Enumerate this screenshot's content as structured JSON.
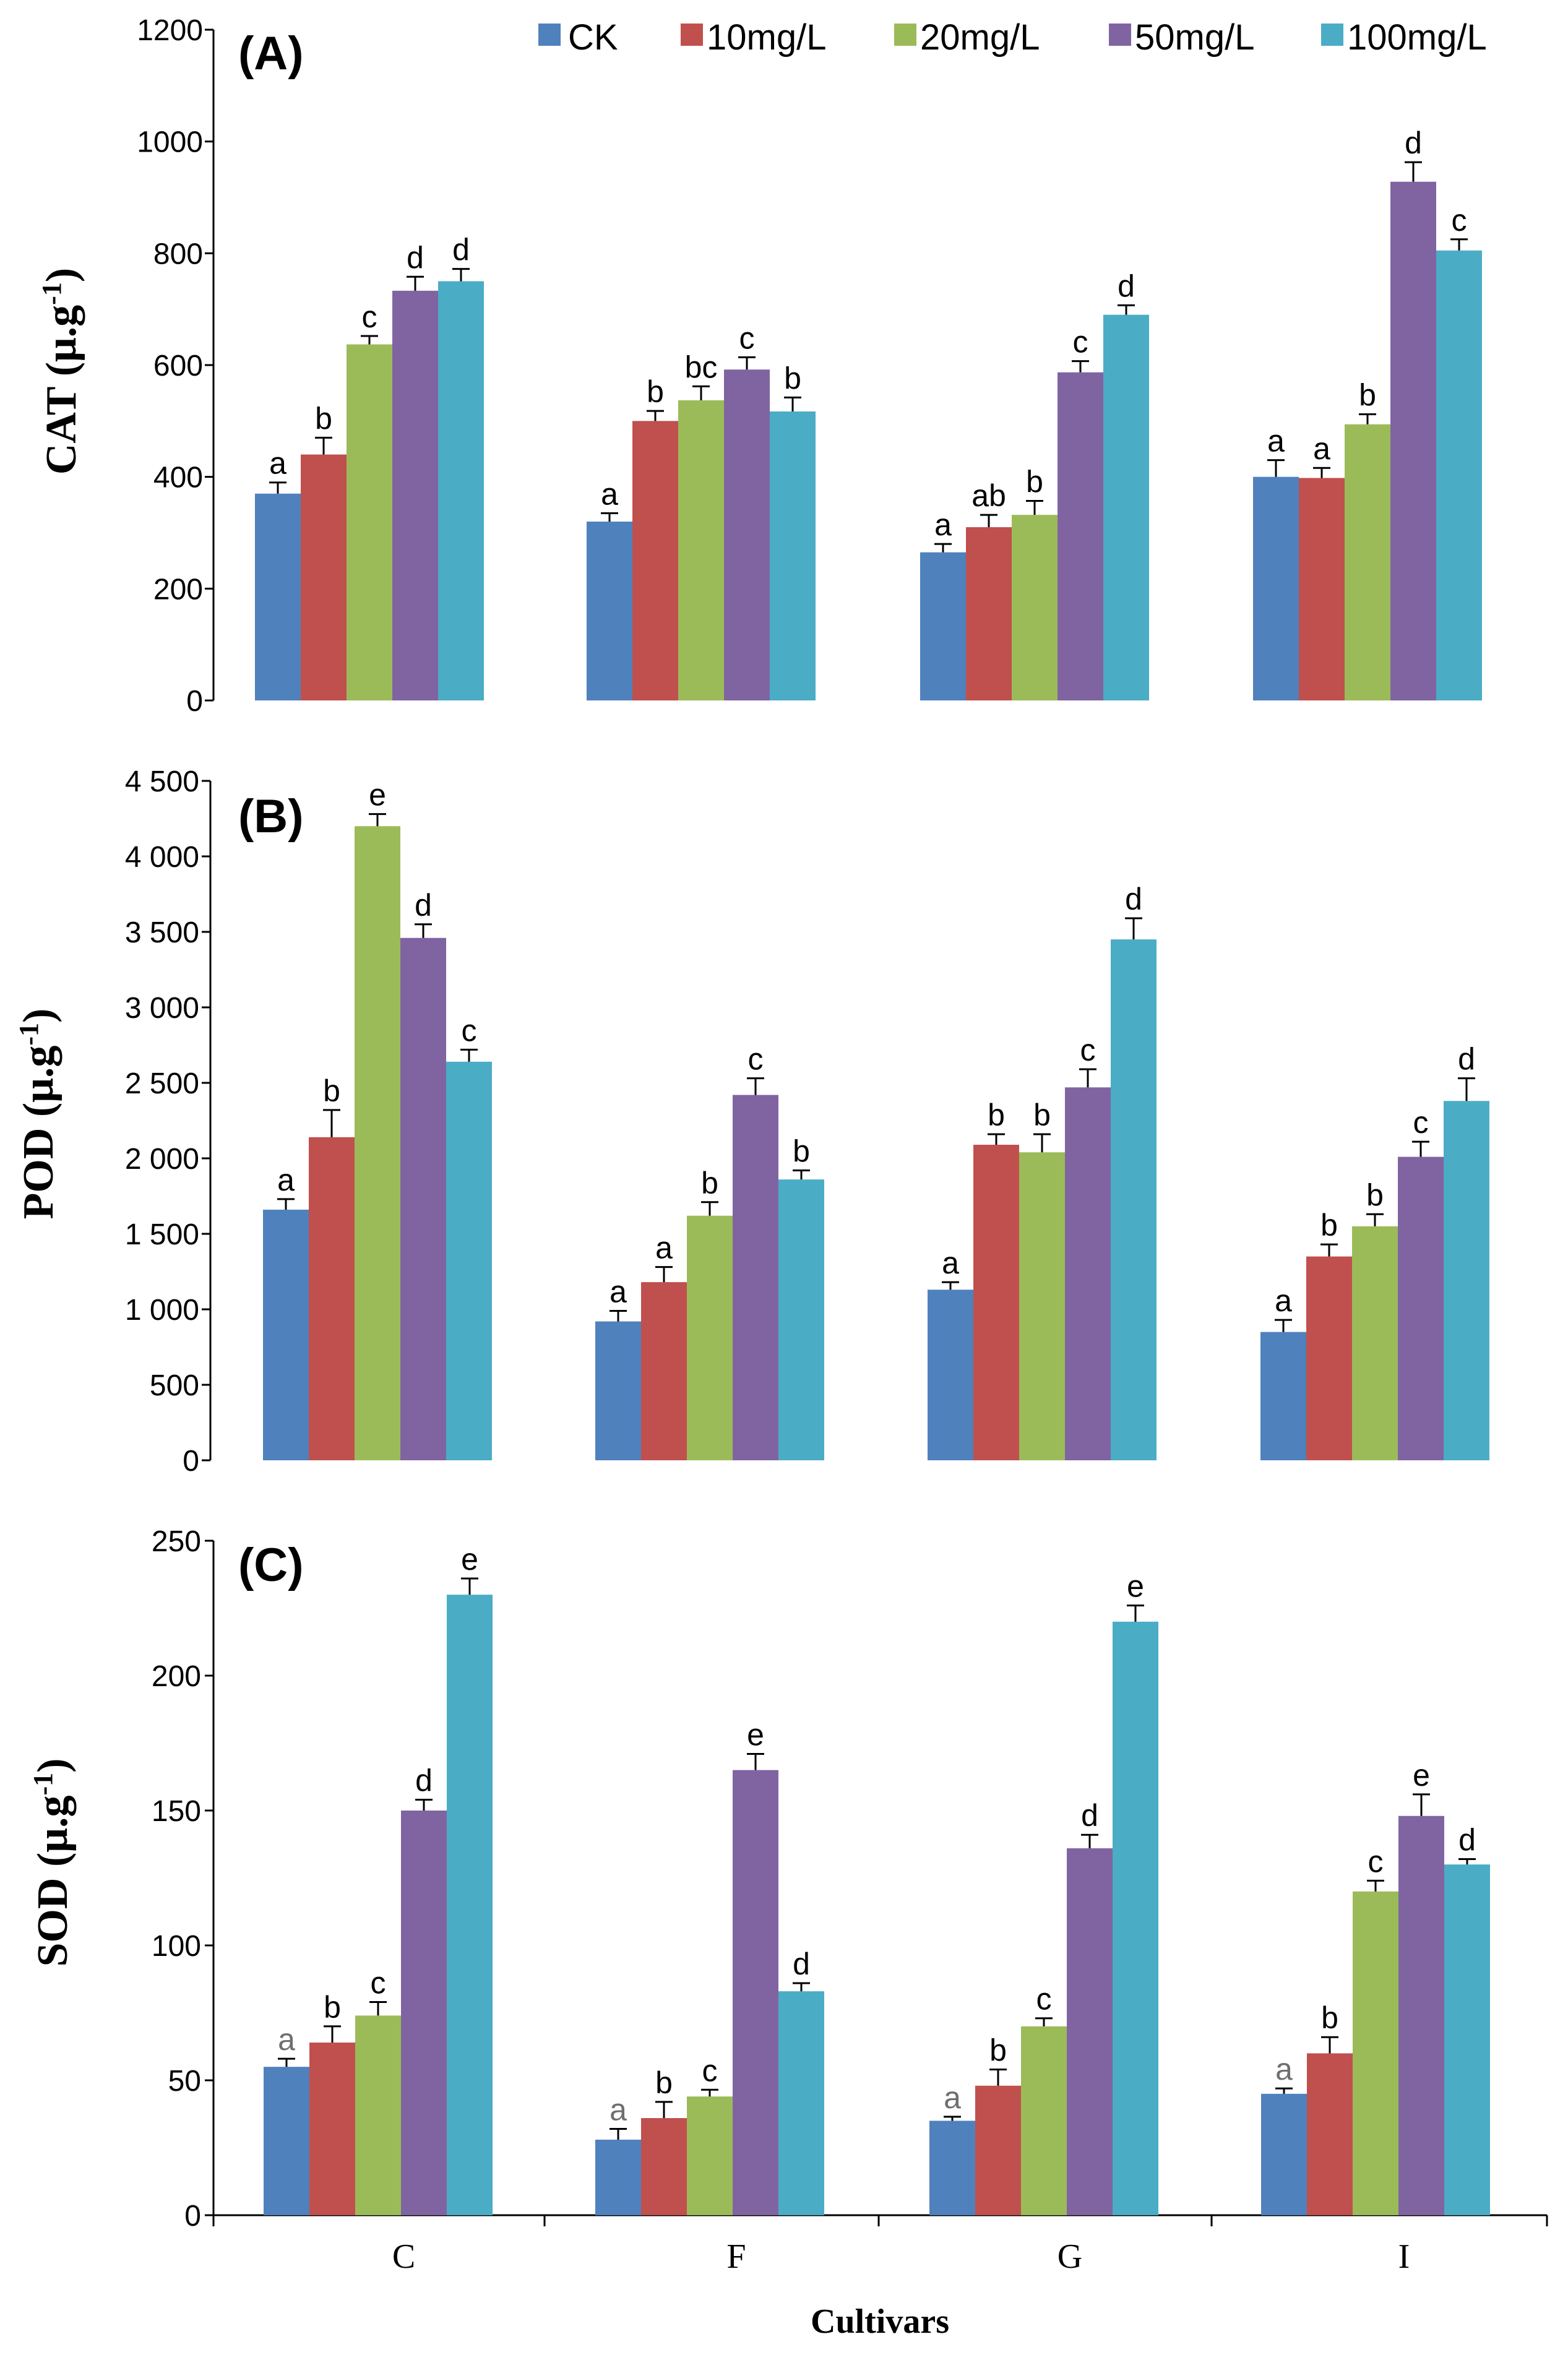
{
  "colors": {
    "series": [
      "#4f81bd",
      "#c0504d",
      "#9bbb59",
      "#8064a2",
      "#4bacc6"
    ],
    "axis": "#000000",
    "gray_letter": "#6f6f6f"
  },
  "legend": [
    "CK",
    "10mg/L",
    "20mg/L",
    "50mg/L",
    "100mg/L"
  ],
  "x_title": "Cultivars",
  "chart_data": [
    {
      "type": "bar",
      "panel_label": "(A)",
      "ylabel": "CAT (μ.g⁻¹)",
      "ylabel_main": "CAT (μ.g",
      "ylabel_sup": "-1",
      "ylabel_close": ")",
      "ylim": [
        0,
        1200
      ],
      "yticks": [
        0,
        200,
        400,
        600,
        800,
        1000,
        1200
      ],
      "ytick_labels": [
        "0",
        "200",
        "400",
        "600",
        "800",
        "1000",
        "1200"
      ],
      "categories": [
        "C",
        "F",
        "G",
        "I"
      ],
      "series": [
        {
          "name": "CK",
          "values": [
            370,
            320,
            265,
            400
          ],
          "errors": [
            20,
            15,
            15,
            30
          ],
          "letters": [
            "a",
            "a",
            "a",
            "a"
          ]
        },
        {
          "name": "10mg/L",
          "values": [
            440,
            500,
            310,
            398
          ],
          "errors": [
            30,
            18,
            22,
            18
          ],
          "letters": [
            "b",
            "b",
            "ab",
            "a"
          ]
        },
        {
          "name": "20mg/L",
          "values": [
            637,
            537,
            332,
            494
          ],
          "errors": [
            15,
            25,
            25,
            18
          ],
          "letters": [
            "c",
            "bc",
            "b",
            "b"
          ]
        },
        {
          "name": "50mg/L",
          "values": [
            733,
            592,
            587,
            928
          ],
          "errors": [
            25,
            22,
            20,
            35
          ],
          "letters": [
            "d",
            "c",
            "c",
            "d"
          ]
        },
        {
          "name": "100mg/L",
          "values": [
            750,
            517,
            690,
            805
          ],
          "errors": [
            22,
            25,
            17,
            20
          ],
          "letters": [
            "d",
            "b",
            "d",
            "c"
          ]
        }
      ]
    },
    {
      "type": "bar",
      "panel_label": "(B)",
      "ylabel": "POD (μ.g⁻¹)",
      "ylabel_main": "POD (μ.g",
      "ylabel_sup": "-1",
      "ylabel_close": ")",
      "ylim": [
        0,
        4500
      ],
      "yticks": [
        0,
        500,
        1000,
        1500,
        2000,
        2500,
        3000,
        3500,
        4000,
        4500
      ],
      "ytick_labels": [
        "0",
        "500",
        "1 000",
        "1 500",
        "2 000",
        "2 500",
        "3 000",
        "3 500",
        "4 000",
        "4 500"
      ],
      "categories": [
        "C",
        "F",
        "G",
        "I"
      ],
      "series": [
        {
          "name": "CK",
          "values": [
            1660,
            920,
            1130,
            850
          ],
          "errors": [
            70,
            70,
            50,
            80
          ],
          "letters": [
            "a",
            "a",
            "a",
            "a"
          ]
        },
        {
          "name": "10mg/L",
          "values": [
            2140,
            1180,
            2090,
            1350
          ],
          "errors": [
            180,
            100,
            70,
            80
          ],
          "letters": [
            "b",
            "a",
            "b",
            "b"
          ]
        },
        {
          "name": "20mg/L",
          "values": [
            4200,
            1620,
            2040,
            1550
          ],
          "errors": [
            80,
            90,
            120,
            80
          ],
          "letters": [
            "e",
            "b",
            "b",
            "b"
          ]
        },
        {
          "name": "50mg/L",
          "values": [
            3460,
            2420,
            2470,
            2010
          ],
          "errors": [
            90,
            110,
            120,
            100
          ],
          "letters": [
            "d",
            "c",
            "c",
            "c"
          ]
        },
        {
          "name": "100mg/L",
          "values": [
            2640,
            1860,
            3450,
            2380
          ],
          "errors": [
            80,
            60,
            140,
            150
          ],
          "letters": [
            "c",
            "b",
            "d",
            "d"
          ]
        }
      ]
    },
    {
      "type": "bar",
      "panel_label": "(C)",
      "ylabel": "SOD (μ.g⁻¹)",
      "ylabel_main": "SOD (μ.g",
      "ylabel_sup": "-1",
      "ylabel_close": ")",
      "ylim": [
        0,
        250
      ],
      "yticks": [
        0,
        50,
        100,
        150,
        200,
        250
      ],
      "ytick_labels": [
        "0",
        "50",
        "100",
        "150",
        "200",
        "250"
      ],
      "categories": [
        "C",
        "F",
        "G",
        "I"
      ],
      "series": [
        {
          "name": "CK",
          "values": [
            55,
            28,
            35,
            45
          ],
          "errors": [
            3,
            4,
            1.5,
            2
          ],
          "letters": [
            "a",
            "a",
            "a",
            "a"
          ],
          "gray_letters": true
        },
        {
          "name": "10mg/L",
          "values": [
            64,
            36,
            48,
            60
          ],
          "errors": [
            6,
            6,
            6,
            6
          ],
          "letters": [
            "b",
            "b",
            "b",
            "b"
          ]
        },
        {
          "name": "20mg/L",
          "values": [
            74,
            44,
            70,
            120
          ],
          "errors": [
            5,
            2.5,
            3,
            4
          ],
          "letters": [
            "c",
            "c",
            "c",
            "c"
          ]
        },
        {
          "name": "50mg/L",
          "values": [
            150,
            165,
            136,
            148
          ],
          "errors": [
            4,
            6,
            5,
            8
          ],
          "letters": [
            "d",
            "e",
            "d",
            "e"
          ]
        },
        {
          "name": "100mg/L",
          "values": [
            230,
            83,
            220,
            130
          ],
          "errors": [
            6,
            3,
            6,
            2
          ],
          "letters": [
            "e",
            "d",
            "e",
            "d"
          ]
        }
      ]
    }
  ]
}
